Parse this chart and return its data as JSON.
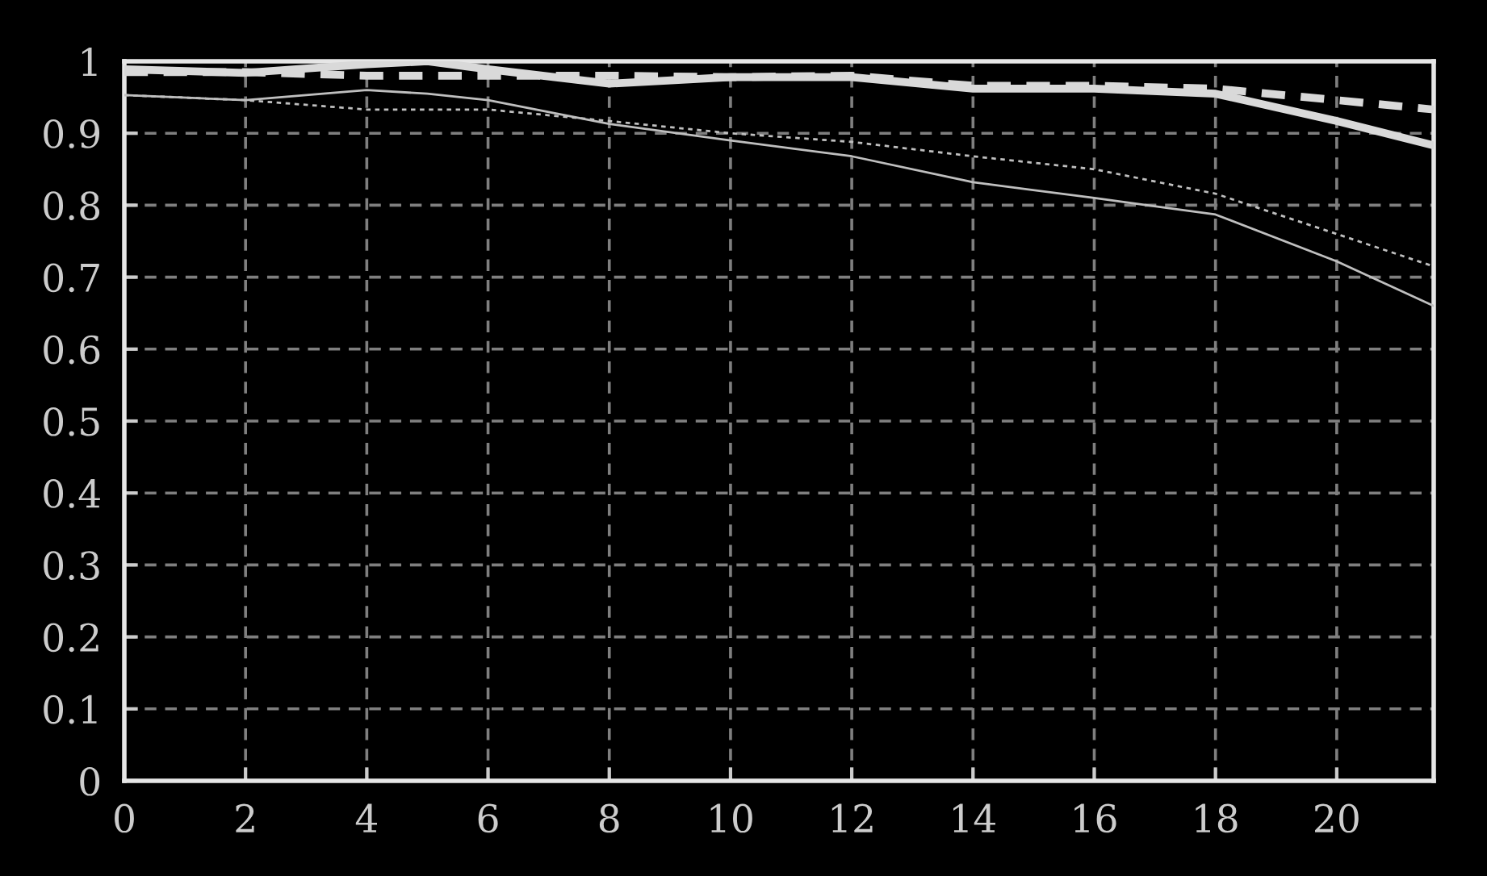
{
  "chart_data": {
    "type": "line",
    "x": [
      0,
      2,
      4,
      5,
      6,
      8,
      10,
      12,
      14,
      16,
      18,
      20,
      21.6
    ],
    "series": [
      {
        "color": "#d9d9d9",
        "line_style": "solid",
        "values": [
          0.989,
          0.984,
          0.996,
          1.0,
          0.989,
          0.969,
          0.978,
          0.978,
          0.962,
          0.962,
          0.955,
          0.917,
          0.883
        ]
      },
      {
        "color": "#d9d9d9",
        "line_style": "dashed",
        "values": [
          0.985,
          0.985,
          0.98,
          0.98,
          0.98,
          0.98,
          0.978,
          0.98,
          0.966,
          0.966,
          0.962,
          0.946,
          0.933
        ]
      },
      {
        "color": "#bfbfbf",
        "line_style": "solid",
        "values": [
          0.953,
          0.946,
          0.96,
          0.955,
          0.946,
          0.913,
          0.89,
          0.868,
          0.832,
          0.81,
          0.787,
          0.722,
          0.66
        ]
      },
      {
        "color": "#bfbfbf",
        "line_style": "dotted",
        "values": [
          0.953,
          0.946,
          0.933,
          0.933,
          0.933,
          0.917,
          0.9,
          0.888,
          0.868,
          0.85,
          0.816,
          0.76,
          0.715
        ]
      }
    ],
    "xlim": [
      0,
      21.6
    ],
    "ylim": [
      0,
      1
    ],
    "xticks": [
      0,
      2,
      4,
      6,
      8,
      10,
      12,
      14,
      16,
      18,
      20
    ],
    "yticks": [
      0,
      0.1,
      0.2,
      0.3,
      0.4,
      0.5,
      0.6,
      0.7,
      0.8,
      0.9,
      1
    ],
    "grid": true,
    "legend": false,
    "marker": "none"
  }
}
